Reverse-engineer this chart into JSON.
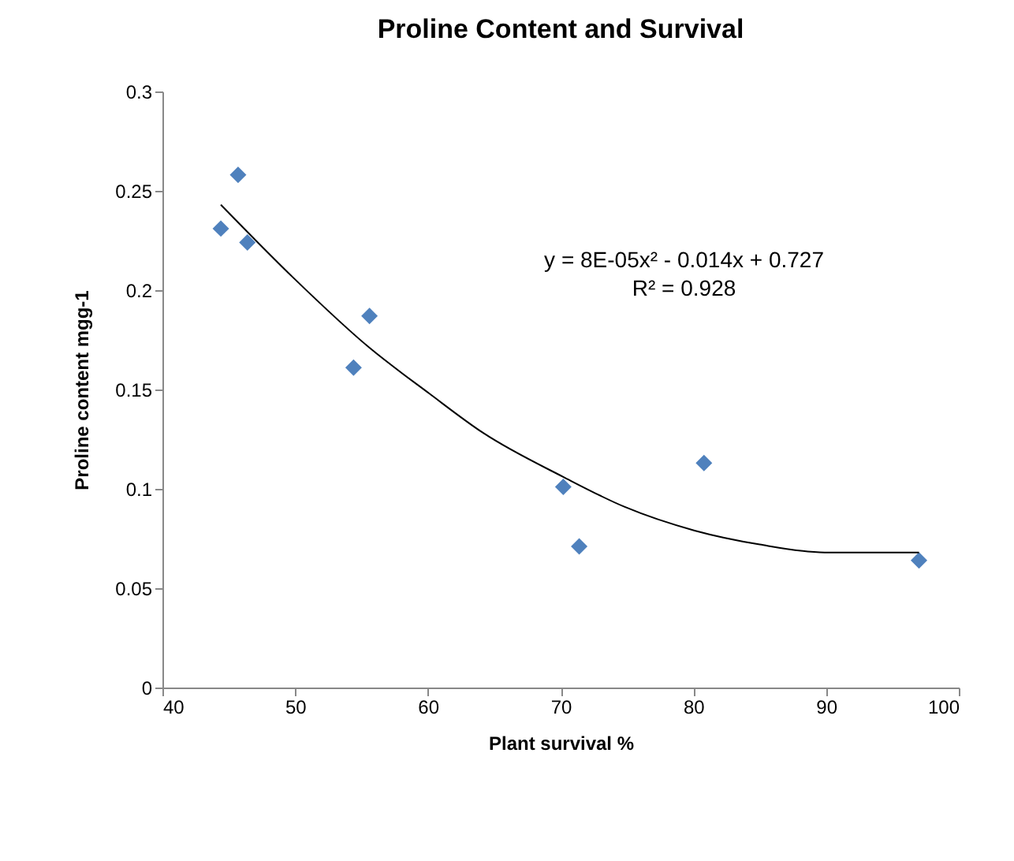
{
  "chart_data": {
    "type": "scatter",
    "title": "Proline Content and Survival",
    "xlabel": "Plant survival %",
    "ylabel": "Proline content mgg-1",
    "x": [
      44.4,
      45.7,
      46.4,
      54.4,
      55.6,
      70.2,
      71.4,
      80.8,
      97.0
    ],
    "series": [
      {
        "color": "#4f81bd",
        "marker": "diamond",
        "values": [
          0.231,
          0.258,
          0.224,
          0.161,
          0.187,
          0.101,
          0.071,
          0.113,
          0.064
        ]
      },
      {
        "type": "line",
        "color": "#000000",
        "x": [
          44.4,
          49.9,
          55.6,
          60.1,
          64.2,
          70.2,
          74.8,
          80.1,
          85.0,
          89.9,
          97.0
        ],
        "values": [
          0.243,
          0.206,
          0.171,
          0.148,
          0.128,
          0.106,
          0.091,
          0.079,
          0.072,
          0.068,
          0.068
        ]
      }
    ],
    "annotations": [
      "y = 8E-05x² - 0.014x + 0.727",
      "R² = 0.928"
    ],
    "xlim": [
      40,
      100
    ],
    "xticks": [
      40,
      50,
      60,
      70,
      80,
      90,
      100
    ],
    "ylim": [
      0,
      0.3
    ],
    "yticks": [
      0,
      0.05,
      0.1,
      0.15,
      0.2,
      0.25,
      0.3
    ],
    "grid": false
  }
}
